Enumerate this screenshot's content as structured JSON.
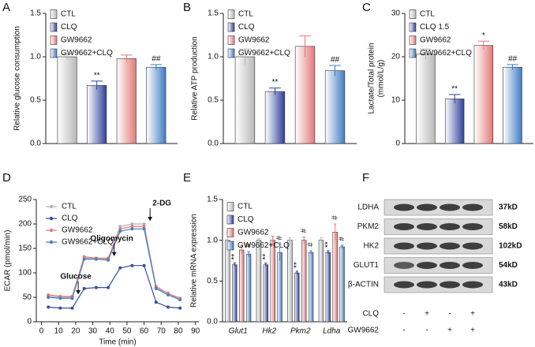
{
  "chart_data": [
    {
      "type": "bar",
      "panel": "A",
      "ylabel": "Relative glucose consumption",
      "ylim": [
        0,
        1.5
      ],
      "yticks": [
        {
          "value": 0,
          "label": "0.0"
        },
        0.5,
        {
          "value": 1,
          "label": "1.0"
        },
        1.5
      ],
      "series": [
        {
          "name": "CTL",
          "color": "#b8b8b8",
          "values": [
            1.0
          ],
          "errors": [
            0.03
          ]
        },
        {
          "name": "CLQ",
          "color": "#2e3f9a",
          "values": [
            0.67
          ],
          "errors": [
            0.05
          ],
          "labels": [
            "**"
          ]
        },
        {
          "name": "GW9662",
          "color": "#e57878",
          "values": [
            0.98
          ],
          "errors": [
            0.04
          ]
        },
        {
          "name": "GW9662+CLQ",
          "color": "#3f7bc4",
          "values": [
            0.88
          ],
          "errors": [
            0.03
          ],
          "labels": [
            "##"
          ]
        }
      ]
    },
    {
      "type": "bar",
      "panel": "B",
      "ylabel": "Relative ATP production",
      "ylim": [
        0,
        1.5
      ],
      "yticks": [
        {
          "value": 0,
          "label": "0.0"
        },
        0.5,
        {
          "value": 1,
          "label": "1.0"
        },
        1.5
      ],
      "series": [
        {
          "name": "CTL",
          "color": "#b8b8b8",
          "values": [
            1.0
          ],
          "errors": [
            0.09
          ]
        },
        {
          "name": "CLQ",
          "color": "#2e3f9a",
          "values": [
            0.6
          ],
          "errors": [
            0.04
          ],
          "labels": [
            "**"
          ]
        },
        {
          "name": "GW9662",
          "color": "#e57878",
          "values": [
            1.12
          ],
          "errors": [
            0.12
          ]
        },
        {
          "name": "GW9662+CLQ",
          "color": "#3f7bc4",
          "values": [
            0.84
          ],
          "errors": [
            0.06
          ],
          "labels": [
            "##"
          ]
        }
      ]
    },
    {
      "type": "bar",
      "panel": "C",
      "ylabel": [
        "Lactate/Total protein",
        "(mmol/L/g)"
      ],
      "ylim": [
        0,
        30
      ],
      "yticks": [
        0,
        10,
        20,
        30
      ],
      "series": [
        {
          "name": "CTL",
          "color": "#b8b8b8",
          "values": [
            20.6
          ],
          "errors": [
            1.2
          ]
        },
        {
          "name": "CLQ 1.5",
          "color": "#2e3f9a",
          "values": [
            10.3
          ],
          "errors": [
            1.0
          ],
          "labels": [
            "**"
          ]
        },
        {
          "name": "GW9662",
          "color": "#e57878",
          "values": [
            22.6
          ],
          "errors": [
            1.0
          ],
          "labels": [
            "*"
          ]
        },
        {
          "name": "GW9662+CLQ",
          "color": "#3f7bc4",
          "values": [
            17.6
          ],
          "errors": [
            0.6
          ],
          "labels": [
            "##"
          ]
        }
      ]
    },
    {
      "type": "line",
      "panel": "D",
      "xlabel": "Time (min)",
      "ylabel": "ECAR (pmol/min)",
      "annotations": [
        "Glucose",
        "Oligomycin",
        "2-DG"
      ],
      "x": [
        4,
        11,
        18,
        25,
        32,
        39,
        46,
        53,
        60,
        67,
        74,
        81
      ],
      "xlim": [
        -3,
        92
      ],
      "xticks": [
        0,
        10,
        20,
        30,
        40,
        50,
        60,
        70,
        80,
        90
      ],
      "ylim": [
        0,
        250
      ],
      "yticks": [
        0,
        50,
        100,
        150,
        200,
        250
      ],
      "series": [
        {
          "name": "CTL",
          "color": "#b5b5b5",
          "values": [
            52,
            50,
            50,
            130,
            130,
            128,
            195,
            200,
            200,
            70,
            58,
            45
          ]
        },
        {
          "name": "CLQ",
          "color": "#3a4c9e",
          "values": [
            30,
            28,
            28,
            68,
            70,
            70,
            110,
            115,
            115,
            40,
            30,
            28
          ]
        },
        {
          "name": "GW9662",
          "color": "#e57878",
          "values": [
            55,
            52,
            52,
            133,
            130,
            130,
            190,
            195,
            195,
            72,
            58,
            48
          ]
        },
        {
          "name": "GW9662+CLQ",
          "color": "#4a7fc0",
          "values": [
            50,
            48,
            48,
            128,
            128,
            126,
            185,
            190,
            190,
            68,
            55,
            45
          ]
        }
      ]
    },
    {
      "type": "bar",
      "panel": "E",
      "ylabel": "Relative mRNA expression",
      "categories": [
        "Glut1",
        "Hk2",
        "Pkm2",
        "Ldha"
      ],
      "ylim": [
        0,
        1.5
      ],
      "yticks": [
        {
          "value": 0,
          "label": "0.0"
        },
        0.5,
        {
          "value": 1,
          "label": "1.0"
        },
        1.5
      ],
      "series": [
        {
          "name": "CTL",
          "color": "#b8b8b8",
          "values": [
            1.0,
            1.0,
            1.0,
            1.0
          ],
          "errors": [
            0.1,
            0.02,
            0.03,
            0.03
          ]
        },
        {
          "name": "CLQ",
          "color": "#2e3f9a",
          "values": [
            0.7,
            0.7,
            0.6,
            0.85
          ],
          "errors": [
            0.02,
            0.02,
            0.02,
            0.02
          ],
          "labels": [
            "**",
            "**",
            "**",
            "**"
          ]
        },
        {
          "name": "GW9662",
          "color": "#e57878",
          "values": [
            0.88,
            1.0,
            1.0,
            1.1
          ],
          "errors": [
            0.05,
            0.05,
            0.04,
            0.1
          ],
          "labels": [
            null,
            null,
            "#",
            "#"
          ]
        },
        {
          "name": "GW9662+CLQ",
          "color": "#3f7bc4",
          "values": [
            0.83,
            0.85,
            0.85,
            0.92
          ],
          "errors": [
            0.03,
            0.1,
            0.02,
            0.02
          ],
          "labels": [
            "#",
            "#",
            "#",
            "#"
          ]
        }
      ]
    }
  ],
  "blot": {
    "panel": "F",
    "rows": [
      {
        "label": "LDHA",
        "size": "37kD"
      },
      {
        "label": "PKM2",
        "size": "58kD"
      },
      {
        "label": "HK2",
        "size": "102kD"
      },
      {
        "label": "GLUT1",
        "size": "54kD"
      },
      {
        "label": "β-ACTIN",
        "size": "43kD"
      }
    ],
    "conditions": [
      {
        "name": "CLQ",
        "signs": [
          "-",
          "+",
          "-",
          "+"
        ]
      },
      {
        "name": "GW9662",
        "signs": [
          "-",
          "-",
          "+",
          "+"
        ]
      }
    ]
  }
}
